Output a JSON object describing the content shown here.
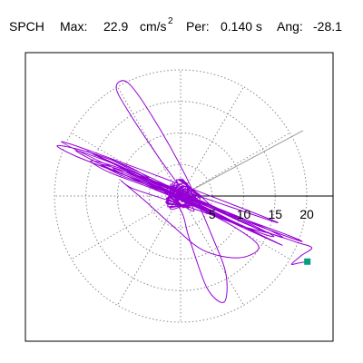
{
  "header": {
    "station": "SPCH",
    "max_label": "Max:",
    "max_value": "22.9",
    "max_unit": "cm/s",
    "max_unit_exp": "2",
    "per_label": "Per:",
    "per_value": "0.140 s",
    "ang_label": "Ang:",
    "ang_value": "-28.1"
  },
  "chart_data": {
    "type": "line",
    "title": "SPCH",
    "subtitle": "Max: 22.9 cm/s2  Per: 0.140 s  Ang: -28.1",
    "coordinate_system": "polar particle motion (horizontal plane)",
    "r_ticks": [
      5,
      10,
      15,
      20
    ],
    "r_tick_labels": [
      "5",
      "10",
      "15",
      "20"
    ],
    "rings": [
      5,
      10,
      15,
      20
    ],
    "xlim": [
      -24.5,
      24.5
    ],
    "ylim": [
      -23.5,
      22.5
    ],
    "grid": true,
    "grid_angle_step_deg": 30,
    "orientation_angle_deg": -28.1,
    "orientation_line_angle_deg": 28.1,
    "peak_value": 22.9,
    "end_marker": {
      "x": 20.1,
      "y": -10.4
    },
    "trace_color": "#9400d3",
    "marker_color": "#00a080",
    "grid_color": "#888888",
    "series": [
      {
        "points": [
          [
            0,
            0
          ],
          [
            0.8,
            0.5
          ],
          [
            1.5,
            -0.3
          ],
          [
            -1.2,
            0.8
          ],
          [
            0.4,
            -1.6
          ],
          [
            1.8,
            1.1
          ],
          [
            -0.9,
            -1.4
          ],
          [
            2.4,
            -0.6
          ],
          [
            -2.2,
            0.9
          ],
          [
            1.1,
            1.9
          ],
          [
            -1.6,
            -2.1
          ],
          [
            3.0,
            0.2
          ],
          [
            -3.4,
            1.6
          ],
          [
            2.1,
            -2.4
          ],
          [
            -0.6,
            2.6
          ],
          [
            4.8,
            -1.8
          ],
          [
            -5.9,
            3.1
          ],
          [
            7.2,
            -2.6
          ],
          [
            -8.6,
            3.8
          ],
          [
            9.4,
            -4.6
          ],
          [
            -11.2,
            5.9
          ],
          [
            12.6,
            -5.4
          ],
          [
            -14.8,
            7.1
          ],
          [
            16.1,
            -7.8
          ],
          [
            -18.9,
            8.6
          ],
          [
            15.4,
            -4.2
          ],
          [
            -10.6,
            4.4
          ],
          [
            6.1,
            -3.3
          ],
          [
            -3.2,
            1.4
          ],
          [
            1.2,
            -0.8
          ],
          [
            -3.8,
            6.6
          ],
          [
            -7.9,
            12.8
          ],
          [
            -10.2,
            17.1
          ],
          [
            -8.4,
            18.0
          ],
          [
            -4.6,
            12.8
          ],
          [
            0.8,
            3.2
          ],
          [
            5.0,
            -6.4
          ],
          [
            7.2,
            -12.4
          ],
          [
            6.9,
            -16.8
          ],
          [
            4.2,
            -14.6
          ],
          [
            1.4,
            -6.8
          ],
          [
            -0.4,
            -1.6
          ],
          [
            -6.2,
            3.6
          ],
          [
            -14.1,
            6.8
          ],
          [
            -19.5,
            8.0
          ],
          [
            -16.8,
            6.4
          ],
          [
            -9.6,
            3.6
          ],
          [
            -2.2,
            0.8
          ],
          [
            6.8,
            -2.6
          ],
          [
            14.6,
            -5.6
          ],
          [
            19.2,
            -7.2
          ],
          [
            17.0,
            -6.2
          ],
          [
            9.4,
            -3.4
          ],
          [
            2.0,
            -0.4
          ],
          [
            -5.2,
            2.8
          ],
          [
            -12.4,
            5.8
          ],
          [
            -16.6,
            7.2
          ],
          [
            -11.8,
            4.6
          ],
          [
            -4.4,
            1.6
          ],
          [
            3.6,
            -1.4
          ],
          [
            10.8,
            -4.6
          ],
          [
            16.2,
            -6.6
          ],
          [
            13.2,
            -5.0
          ],
          [
            6.0,
            -2.0
          ],
          [
            -1.6,
            0.6
          ],
          [
            -8.0,
            3.6
          ],
          [
            -12.6,
            5.0
          ],
          [
            -9.2,
            3.2
          ],
          [
            -2.8,
            0.8
          ],
          [
            4.4,
            -2.2
          ],
          [
            11.4,
            -5.4
          ],
          [
            14.8,
            -6.4
          ],
          [
            10.6,
            -4.2
          ],
          [
            3.8,
            -1.0
          ],
          [
            -3.0,
            1.6
          ],
          [
            -9.6,
            4.4
          ],
          [
            -14.2,
            5.6
          ],
          [
            -11.4,
            3.8
          ],
          [
            -4.0,
            1.0
          ],
          [
            3.4,
            -2.2
          ],
          [
            9.6,
            -5.6
          ],
          [
            12.4,
            -8.2
          ],
          [
            9.2,
            -9.8
          ],
          [
            3.6,
            -8.6
          ],
          [
            -1.4,
            -4.6
          ],
          [
            -5.6,
            -0.8
          ],
          [
            -9.4,
            2.4
          ],
          [
            -7.6,
            1.2
          ],
          [
            -2.2,
            -0.6
          ],
          [
            3.8,
            -2.6
          ],
          [
            9.8,
            -4.8
          ],
          [
            14.4,
            -6.0
          ],
          [
            18.6,
            -7.4
          ],
          [
            20.8,
            -8.2
          ],
          [
            19.2,
            -9.4
          ],
          [
            17.6,
            -10.8
          ],
          [
            18.8,
            -10.6
          ],
          [
            20.1,
            -10.4
          ]
        ]
      }
    ]
  }
}
